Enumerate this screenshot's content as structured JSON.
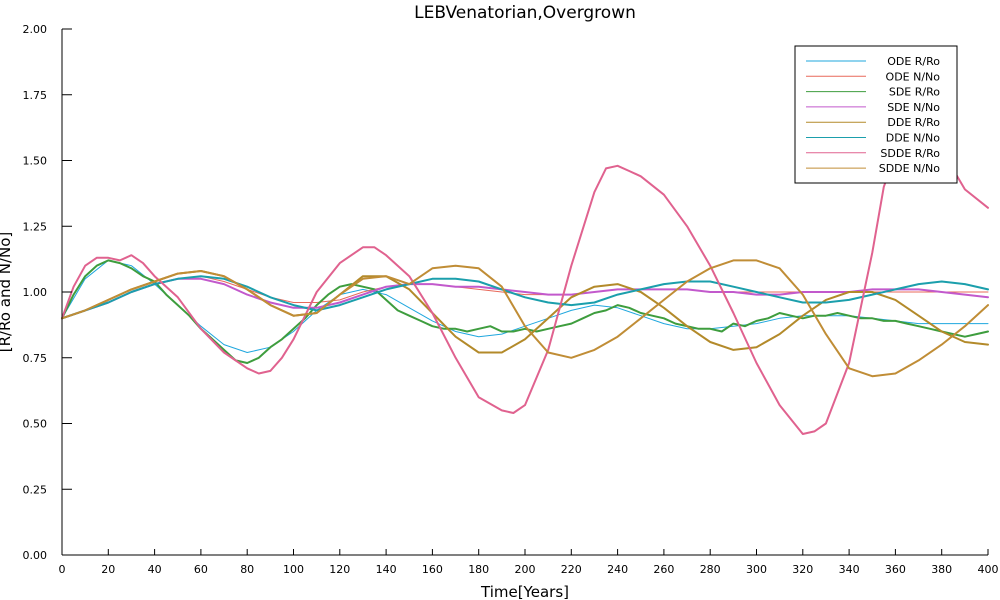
{
  "chart_data": {
    "type": "line",
    "title": "LEBVenatorian,Overgrown",
    "xlabel": "Time[Years]",
    "ylabel": "[R/Ro and N/No]",
    "xlim": [
      0,
      400
    ],
    "ylim": [
      0,
      2
    ],
    "xticks": [
      0,
      20,
      40,
      60,
      80,
      100,
      120,
      140,
      160,
      180,
      200,
      220,
      240,
      260,
      280,
      300,
      320,
      340,
      360,
      380,
      400
    ],
    "yticks": [
      "0.00",
      "0.25",
      "0.50",
      "0.75",
      "1.00",
      "1.25",
      "1.50",
      "1.75",
      "2.00"
    ],
    "grid": false,
    "legend_position": "top-right",
    "series": [
      {
        "name": "ODE R/Ro",
        "color": "#1fa7de",
        "width": 1,
        "x": [
          0,
          10,
          20,
          30,
          40,
          50,
          60,
          70,
          80,
          90,
          100,
          110,
          120,
          130,
          140,
          150,
          160,
          170,
          180,
          190,
          200,
          210,
          220,
          230,
          240,
          250,
          260,
          270,
          280,
          290,
          300,
          310,
          320,
          330,
          340,
          350,
          360,
          370,
          380,
          390,
          400
        ],
        "y": [
          0.9,
          1.05,
          1.12,
          1.1,
          1.03,
          0.95,
          0.87,
          0.8,
          0.77,
          0.79,
          0.85,
          0.93,
          0.99,
          1.01,
          0.99,
          0.94,
          0.89,
          0.85,
          0.83,
          0.84,
          0.87,
          0.9,
          0.93,
          0.95,
          0.94,
          0.91,
          0.88,
          0.86,
          0.86,
          0.87,
          0.88,
          0.9,
          0.91,
          0.91,
          0.91,
          0.9,
          0.89,
          0.88,
          0.88,
          0.88,
          0.88
        ]
      },
      {
        "name": "ODE N/No",
        "color": "#e8695a",
        "width": 1,
        "x": [
          0,
          10,
          20,
          30,
          40,
          50,
          60,
          70,
          80,
          90,
          100,
          110,
          120,
          130,
          140,
          150,
          160,
          170,
          180,
          190,
          200,
          210,
          220,
          230,
          240,
          250,
          260,
          270,
          280,
          290,
          300,
          310,
          320,
          330,
          340,
          350,
          360,
          370,
          380,
          390,
          400
        ],
        "y": [
          0.9,
          0.93,
          0.96,
          1.0,
          1.03,
          1.05,
          1.06,
          1.04,
          1.01,
          0.98,
          0.96,
          0.96,
          0.97,
          1.0,
          1.02,
          1.03,
          1.03,
          1.02,
          1.01,
          1.0,
          0.99,
          0.99,
          0.99,
          1.0,
          1.01,
          1.01,
          1.01,
          1.01,
          1.0,
          1.0,
          1.0,
          1.0,
          1.0,
          1.0,
          1.0,
          1.0,
          1.0,
          1.0,
          1.0,
          1.0,
          1.0
        ]
      },
      {
        "name": "SDE R/Ro",
        "color": "#3e9d3e",
        "width": 2,
        "x": [
          0,
          5,
          10,
          15,
          20,
          25,
          30,
          35,
          40,
          45,
          50,
          55,
          60,
          65,
          70,
          75,
          80,
          85,
          90,
          95,
          100,
          105,
          110,
          115,
          120,
          125,
          130,
          135,
          140,
          145,
          150,
          155,
          160,
          165,
          170,
          175,
          180,
          185,
          190,
          195,
          200,
          205,
          210,
          215,
          220,
          225,
          230,
          235,
          240,
          245,
          250,
          255,
          260,
          265,
          270,
          275,
          280,
          285,
          290,
          295,
          300,
          305,
          310,
          315,
          320,
          325,
          330,
          335,
          340,
          345,
          350,
          355,
          360,
          365,
          370,
          375,
          380,
          385,
          390,
          395,
          400
        ],
        "y": [
          0.9,
          0.99,
          1.06,
          1.1,
          1.12,
          1.11,
          1.09,
          1.06,
          1.04,
          0.99,
          0.95,
          0.91,
          0.86,
          0.82,
          0.78,
          0.74,
          0.73,
          0.75,
          0.79,
          0.82,
          0.86,
          0.9,
          0.95,
          0.99,
          1.02,
          1.03,
          1.02,
          1.01,
          0.97,
          0.93,
          0.91,
          0.89,
          0.87,
          0.86,
          0.86,
          0.85,
          0.86,
          0.87,
          0.85,
          0.85,
          0.86,
          0.85,
          0.86,
          0.87,
          0.88,
          0.9,
          0.92,
          0.93,
          0.95,
          0.94,
          0.92,
          0.91,
          0.9,
          0.88,
          0.87,
          0.86,
          0.86,
          0.85,
          0.88,
          0.87,
          0.89,
          0.9,
          0.92,
          0.91,
          0.9,
          0.91,
          0.91,
          0.92,
          0.91,
          0.9,
          0.9,
          0.89,
          0.89,
          0.88,
          0.87,
          0.86,
          0.85,
          0.84,
          0.83,
          0.84,
          0.85
        ]
      },
      {
        "name": "SDE N/No",
        "color": "#c259cc",
        "width": 2,
        "x": [
          0,
          10,
          20,
          30,
          40,
          50,
          60,
          70,
          80,
          90,
          100,
          110,
          120,
          130,
          140,
          150,
          160,
          170,
          180,
          190,
          200,
          210,
          220,
          230,
          240,
          250,
          260,
          270,
          280,
          290,
          300,
          310,
          320,
          330,
          340,
          350,
          360,
          370,
          380,
          390,
          400
        ],
        "y": [
          0.9,
          0.93,
          0.96,
          1.0,
          1.03,
          1.05,
          1.05,
          1.03,
          0.99,
          0.96,
          0.94,
          0.94,
          0.96,
          0.99,
          1.02,
          1.03,
          1.03,
          1.02,
          1.02,
          1.01,
          1.0,
          0.99,
          0.99,
          1.0,
          1.01,
          1.01,
          1.01,
          1.01,
          1.0,
          1.0,
          0.99,
          0.99,
          1.0,
          1.0,
          1.0,
          1.01,
          1.01,
          1.01,
          1.0,
          0.99,
          0.98
        ]
      },
      {
        "name": "DDE R/Ro",
        "color": "#b38a2a",
        "width": 2,
        "x": [
          0,
          10,
          20,
          30,
          40,
          50,
          60,
          70,
          80,
          90,
          100,
          110,
          120,
          130,
          140,
          150,
          160,
          170,
          180,
          190,
          200,
          210,
          220,
          230,
          240,
          250,
          260,
          270,
          280,
          290,
          300,
          310,
          320,
          330,
          340,
          350,
          360,
          370,
          380,
          390,
          400
        ],
        "y": [
          0.9,
          0.93,
          0.97,
          1.01,
          1.04,
          1.07,
          1.08,
          1.06,
          1.01,
          0.95,
          0.91,
          0.92,
          0.99,
          1.06,
          1.06,
          1.01,
          0.92,
          0.83,
          0.77,
          0.77,
          0.82,
          0.9,
          0.98,
          1.02,
          1.03,
          1.0,
          0.94,
          0.87,
          0.81,
          0.78,
          0.79,
          0.84,
          0.91,
          0.97,
          1.0,
          1.0,
          0.97,
          0.91,
          0.85,
          0.81,
          0.8
        ]
      },
      {
        "name": "DDE N/No",
        "color": "#1b9fac",
        "width": 2,
        "x": [
          0,
          10,
          20,
          30,
          40,
          50,
          60,
          70,
          80,
          90,
          100,
          110,
          120,
          130,
          140,
          150,
          160,
          170,
          180,
          190,
          200,
          210,
          220,
          230,
          240,
          250,
          260,
          270,
          280,
          290,
          300,
          310,
          320,
          330,
          340,
          350,
          360,
          370,
          380,
          390,
          400
        ],
        "y": [
          0.9,
          0.93,
          0.96,
          1.0,
          1.03,
          1.05,
          1.06,
          1.05,
          1.02,
          0.98,
          0.95,
          0.93,
          0.95,
          0.98,
          1.01,
          1.03,
          1.05,
          1.05,
          1.04,
          1.01,
          0.98,
          0.96,
          0.95,
          0.96,
          0.99,
          1.01,
          1.03,
          1.04,
          1.04,
          1.02,
          1.0,
          0.98,
          0.96,
          0.96,
          0.97,
          0.99,
          1.01,
          1.03,
          1.04,
          1.03,
          1.01
        ]
      },
      {
        "name": "SDDE R/Ro",
        "color": "#e0628f",
        "width": 2,
        "x": [
          0,
          5,
          10,
          15,
          20,
          25,
          30,
          35,
          40,
          50,
          60,
          70,
          80,
          85,
          90,
          95,
          100,
          110,
          120,
          130,
          135,
          140,
          150,
          160,
          170,
          180,
          190,
          195,
          200,
          210,
          220,
          230,
          235,
          240,
          245,
          250,
          260,
          270,
          280,
          290,
          300,
          310,
          320,
          325,
          330,
          340,
          350,
          355,
          360,
          370,
          380,
          390,
          400
        ],
        "y": [
          0.9,
          1.02,
          1.1,
          1.13,
          1.13,
          1.12,
          1.14,
          1.11,
          1.06,
          0.98,
          0.86,
          0.77,
          0.71,
          0.69,
          0.7,
          0.75,
          0.82,
          1.0,
          1.11,
          1.17,
          1.17,
          1.14,
          1.06,
          0.92,
          0.75,
          0.6,
          0.55,
          0.54,
          0.57,
          0.78,
          1.1,
          1.38,
          1.47,
          1.48,
          1.46,
          1.44,
          1.37,
          1.25,
          1.1,
          0.92,
          0.73,
          0.57,
          0.46,
          0.47,
          0.5,
          0.73,
          1.15,
          1.4,
          1.52,
          1.6,
          1.54,
          1.39,
          1.32
        ]
      },
      {
        "name": "SDDE N/No",
        "color": "#c08d36",
        "width": 2,
        "x": [
          0,
          10,
          20,
          30,
          40,
          50,
          60,
          70,
          80,
          90,
          100,
          110,
          120,
          130,
          140,
          150,
          160,
          170,
          180,
          190,
          200,
          210,
          220,
          230,
          240,
          250,
          260,
          270,
          280,
          290,
          300,
          310,
          320,
          330,
          340,
          350,
          360,
          370,
          380,
          390,
          400
        ],
        "y": [
          0.9,
          0.93,
          0.97,
          1.01,
          1.04,
          1.07,
          1.08,
          1.06,
          1.01,
          0.95,
          0.91,
          0.92,
          0.99,
          1.05,
          1.06,
          1.03,
          1.09,
          1.1,
          1.09,
          1.02,
          0.87,
          0.77,
          0.75,
          0.78,
          0.83,
          0.9,
          0.97,
          1.04,
          1.09,
          1.12,
          1.12,
          1.09,
          0.99,
          0.84,
          0.71,
          0.68,
          0.69,
          0.74,
          0.8,
          0.87,
          0.95
        ]
      }
    ]
  }
}
